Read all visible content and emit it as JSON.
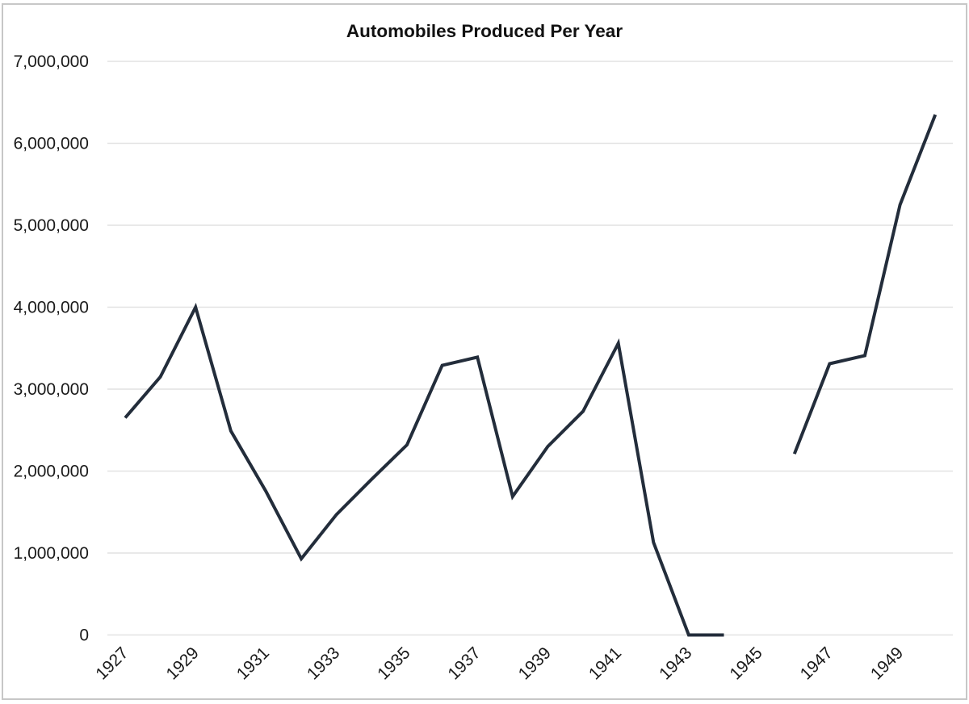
{
  "frame": {
    "background": "#ffffff",
    "border_color": "#c7c7c7"
  },
  "chart_data": {
    "type": "line",
    "title": "Automobiles Produced Per Year",
    "xlabel": "",
    "ylabel": "",
    "x": [
      1927,
      1928,
      1929,
      1930,
      1931,
      1932,
      1933,
      1934,
      1935,
      1936,
      1937,
      1938,
      1939,
      1940,
      1941,
      1942,
      1943,
      1944,
      1945,
      1946,
      1947,
      1948,
      1949,
      1950
    ],
    "values": [
      2650000,
      3150000,
      4000000,
      2490000,
      1750000,
      930000,
      1470000,
      1900000,
      2320000,
      3290000,
      3390000,
      1690000,
      2300000,
      2730000,
      3560000,
      1130000,
      0,
      0,
      null,
      2210000,
      3310000,
      3410000,
      5250000,
      6350000
    ],
    "ylim": [
      0,
      7000000
    ],
    "ytick_interval": 1000000,
    "ytick_labels": [
      "0",
      "1,000,000",
      "2,000,000",
      "3,000,000",
      "4,000,000",
      "5,000,000",
      "6,000,000",
      "7,000,000"
    ],
    "xtick_labels": [
      "1927",
      "1929",
      "1931",
      "1933",
      "1935",
      "1937",
      "1939",
      "1941",
      "1943",
      "1945",
      "1947",
      "1949"
    ],
    "grid": "horizontal",
    "legend": "none",
    "line_color": "#232d3b",
    "grid_color": "#e2e2e2",
    "text_color": "#1a1a1a",
    "title_color": "#111111"
  }
}
